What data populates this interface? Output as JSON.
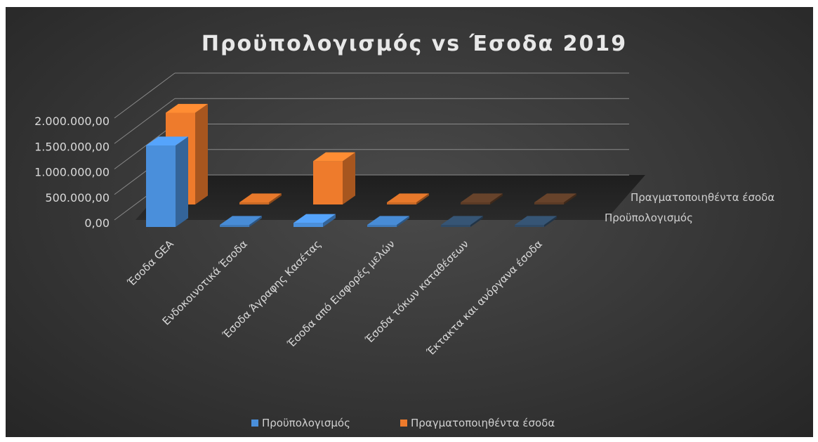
{
  "chart_data": {
    "type": "bar",
    "title": "Προϋπολογισμός vs Έσοδα 2019",
    "categories": [
      "Έσοδα GEA",
      "Ενδοκοινοτικά Έσοδα",
      "Έσοδα Άγραφης Κασέτας",
      "Έσοδα από Εισφορές μελών",
      "Έσοδα τόκων καταθέσεων",
      "Έκτακτα και ανόργανα έσοδα"
    ],
    "series": [
      {
        "name": "Προϋπολογισμός",
        "values": [
          1600000,
          0,
          80000,
          0,
          0,
          0
        ]
      },
      {
        "name": "Πραγματοποιηθέντα έσοδα",
        "values": [
          1800000,
          0,
          850000,
          0,
          0,
          0
        ]
      }
    ],
    "y_ticks": [
      "0,00",
      "500.000,00",
      "1.000.000,00",
      "1.500.000,00",
      "2.000.000,00"
    ],
    "ylim": [
      0,
      2000000
    ],
    "legend": "bottom",
    "grid": true,
    "colors": {
      "budget": "#4a8fdb",
      "actual": "#ee7b2c",
      "background": "#3a3a3a",
      "text": "#d9d9d9"
    }
  }
}
